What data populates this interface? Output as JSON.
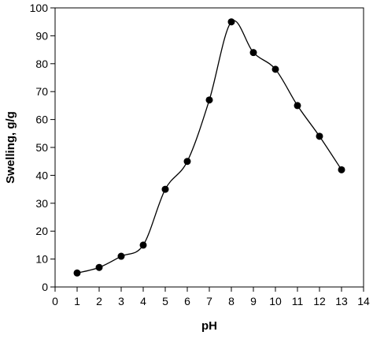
{
  "chart_data": {
    "type": "line",
    "title": "",
    "xlabel": "pH",
    "ylabel": "Swelling, g/g",
    "xlim": [
      0,
      14
    ],
    "ylim": [
      0,
      100
    ],
    "x_ticks": [
      0,
      1,
      2,
      3,
      4,
      5,
      6,
      7,
      8,
      9,
      10,
      11,
      12,
      13,
      14
    ],
    "y_ticks": [
      0,
      10,
      20,
      30,
      40,
      50,
      60,
      70,
      80,
      90,
      100
    ],
    "grid": false,
    "legend": "none",
    "marker": "circle",
    "smooth": true,
    "series": [
      {
        "x": [
          1,
          2,
          3,
          4,
          5,
          6,
          7,
          8,
          9,
          10,
          11,
          12,
          13
        ],
        "values": [
          5,
          7,
          11,
          15,
          35,
          45,
          67,
          95,
          84,
          78,
          65,
          54,
          42
        ],
        "color": "#000000"
      }
    ]
  }
}
